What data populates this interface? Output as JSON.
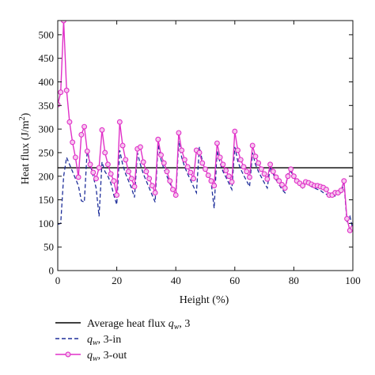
{
  "chart_data": {
    "type": "line",
    "title": "",
    "xlabel": "Height (%)",
    "ylabel_main": "Heat flux (J/m",
    "ylabel_sup": "2",
    "ylabel_close": ")",
    "xlim": [
      0,
      100
    ],
    "ylim": [
      0,
      530
    ],
    "xticks": [
      0,
      20,
      40,
      60,
      80,
      100
    ],
    "yticks": [
      0,
      50,
      100,
      150,
      200,
      250,
      300,
      350,
      400,
      450,
      500
    ],
    "xtick_labels": [
      "0",
      "20",
      "40",
      "60",
      "80",
      "100"
    ],
    "ytick_labels": [
      "0",
      "50",
      "100",
      "150",
      "200",
      "250",
      "300",
      "350",
      "400",
      "450",
      "500"
    ],
    "grid": false,
    "legend_position": "below-plot",
    "legend": [
      {
        "prefix": "Average heat flux ",
        "var": "q",
        "sub": "w",
        "suffix": ", 3"
      },
      {
        "prefix": "",
        "var": "q",
        "sub": "w",
        "suffix": ", 3-in"
      },
      {
        "prefix": "",
        "var": "q",
        "sub": "w",
        "suffix": ", 3-out"
      }
    ],
    "series": [
      {
        "key": "average",
        "color": "#000000",
        "style": "solid",
        "marker": "none",
        "x": [
          0,
          100
        ],
        "y": [
          218,
          218
        ]
      },
      {
        "key": "in",
        "color": "#1f2f9a",
        "style": "dashed",
        "marker": "none",
        "x": [
          0,
          1,
          2,
          3,
          4,
          5,
          6,
          7,
          8,
          9,
          10,
          11,
          12,
          13,
          14,
          15,
          16,
          17,
          18,
          19,
          20,
          21,
          22,
          23,
          24,
          25,
          26,
          27,
          28,
          29,
          30,
          31,
          32,
          33,
          34,
          35,
          36,
          37,
          38,
          39,
          40,
          41,
          42,
          43,
          44,
          45,
          46,
          47,
          48,
          49,
          50,
          51,
          52,
          53,
          54,
          55,
          56,
          57,
          58,
          59,
          60,
          61,
          62,
          63,
          64,
          65,
          66,
          67,
          68,
          69,
          70,
          71,
          72,
          73,
          74,
          75,
          76,
          77,
          78,
          79,
          80,
          81,
          82,
          83,
          84,
          85,
          86,
          87,
          88,
          89,
          90,
          91,
          92,
          93,
          94,
          95,
          96,
          97,
          98,
          99,
          100
        ],
        "y": [
          98,
          100,
          200,
          240,
          225,
          210,
          195,
          180,
          148,
          145,
          258,
          225,
          200,
          175,
          115,
          230,
          210,
          200,
          185,
          160,
          140,
          255,
          225,
          205,
          190,
          175,
          155,
          250,
          225,
          205,
          190,
          175,
          160,
          145,
          268,
          235,
          215,
          200,
          185,
          170,
          155,
          275,
          240,
          220,
          205,
          192,
          178,
          165,
          262,
          232,
          215,
          200,
          186,
          132,
          255,
          228,
          210,
          198,
          185,
          172,
          262,
          232,
          215,
          202,
          190,
          178,
          250,
          225,
          210,
          198,
          186,
          175,
          220,
          205,
          192,
          182,
          172,
          165,
          208,
          210,
          198,
          188,
          180,
          175,
          185,
          182,
          178,
          175,
          172,
          170,
          165,
          162,
          158,
          158,
          158,
          162,
          165,
          185,
          105,
          115,
          88
        ]
      },
      {
        "key": "out",
        "color": "#e030c8",
        "style": "solid",
        "marker": "circle",
        "x": [
          0,
          1,
          2,
          3,
          4,
          5,
          6,
          7,
          8,
          9,
          10,
          11,
          12,
          13,
          14,
          15,
          16,
          17,
          18,
          19,
          20,
          21,
          22,
          23,
          24,
          25,
          26,
          27,
          28,
          29,
          30,
          31,
          32,
          33,
          34,
          35,
          36,
          37,
          38,
          39,
          40,
          41,
          42,
          43,
          44,
          45,
          46,
          47,
          48,
          49,
          50,
          51,
          52,
          53,
          54,
          55,
          56,
          57,
          58,
          59,
          60,
          61,
          62,
          63,
          64,
          65,
          66,
          67,
          68,
          69,
          70,
          71,
          72,
          73,
          74,
          75,
          76,
          77,
          78,
          79,
          80,
          81,
          82,
          83,
          84,
          85,
          86,
          87,
          88,
          89,
          90,
          91,
          92,
          93,
          94,
          95,
          96,
          97,
          98,
          99,
          100
        ],
        "y": [
          352,
          378,
          530,
          382,
          315,
          272,
          240,
          198,
          288,
          305,
          253,
          225,
          208,
          195,
          218,
          298,
          250,
          225,
          205,
          190,
          160,
          315,
          265,
          235,
          210,
          195,
          178,
          258,
          262,
          230,
          210,
          195,
          180,
          165,
          278,
          245,
          228,
          210,
          190,
          172,
          160,
          292,
          255,
          235,
          220,
          208,
          195,
          255,
          250,
          228,
          215,
          202,
          190,
          180,
          270,
          240,
          225,
          212,
          200,
          188,
          295,
          255,
          235,
          220,
          210,
          198,
          265,
          242,
          228,
          215,
          205,
          194,
          225,
          210,
          198,
          190,
          182,
          175,
          200,
          215,
          200,
          190,
          185,
          180,
          188,
          186,
          183,
          180,
          180,
          178,
          176,
          172,
          160,
          160,
          165,
          165,
          170,
          190,
          110,
          85,
          90
        ]
      }
    ]
  },
  "colors": {
    "average": "#000000",
    "in": "#1f2f9a",
    "out": "#e030c8",
    "axis": "#111111"
  }
}
